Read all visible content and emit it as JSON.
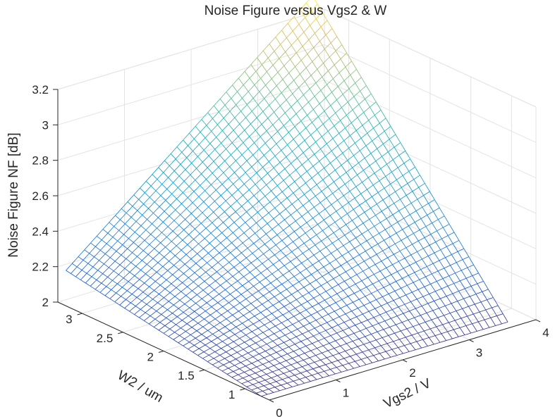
{
  "chart_data": {
    "type": "surface",
    "title": "Noise Figure versus Vgs2 & W",
    "xlabel": "Vgs2 / V",
    "ylabel": "W2 / um",
    "zlabel": "Noise Figure NF [dB]",
    "xlim": [
      0,
      4
    ],
    "ylim": [
      0.7,
      3.3
    ],
    "zlim": [
      2,
      3.2
    ],
    "xticks": [
      "0",
      "1",
      "2",
      "3",
      "4"
    ],
    "yticks": [
      "1",
      "1.5",
      "2",
      "2.5",
      "3"
    ],
    "zticks": [
      "2",
      "2.2",
      "2.4",
      "2.6",
      "2.8",
      "3",
      "3.2"
    ],
    "grid": true,
    "colormap": "parula",
    "surface": {
      "x_range": [
        0,
        3.7
      ],
      "y_range": [
        0.8,
        3.2
      ],
      "x_count": 41,
      "y_count": 41,
      "corner_values": {
        "x0_y0": 2.0,
        "x1_y0": 2.0,
        "x0_y1": 2.2,
        "x1_y1": 3.33
      }
    }
  }
}
